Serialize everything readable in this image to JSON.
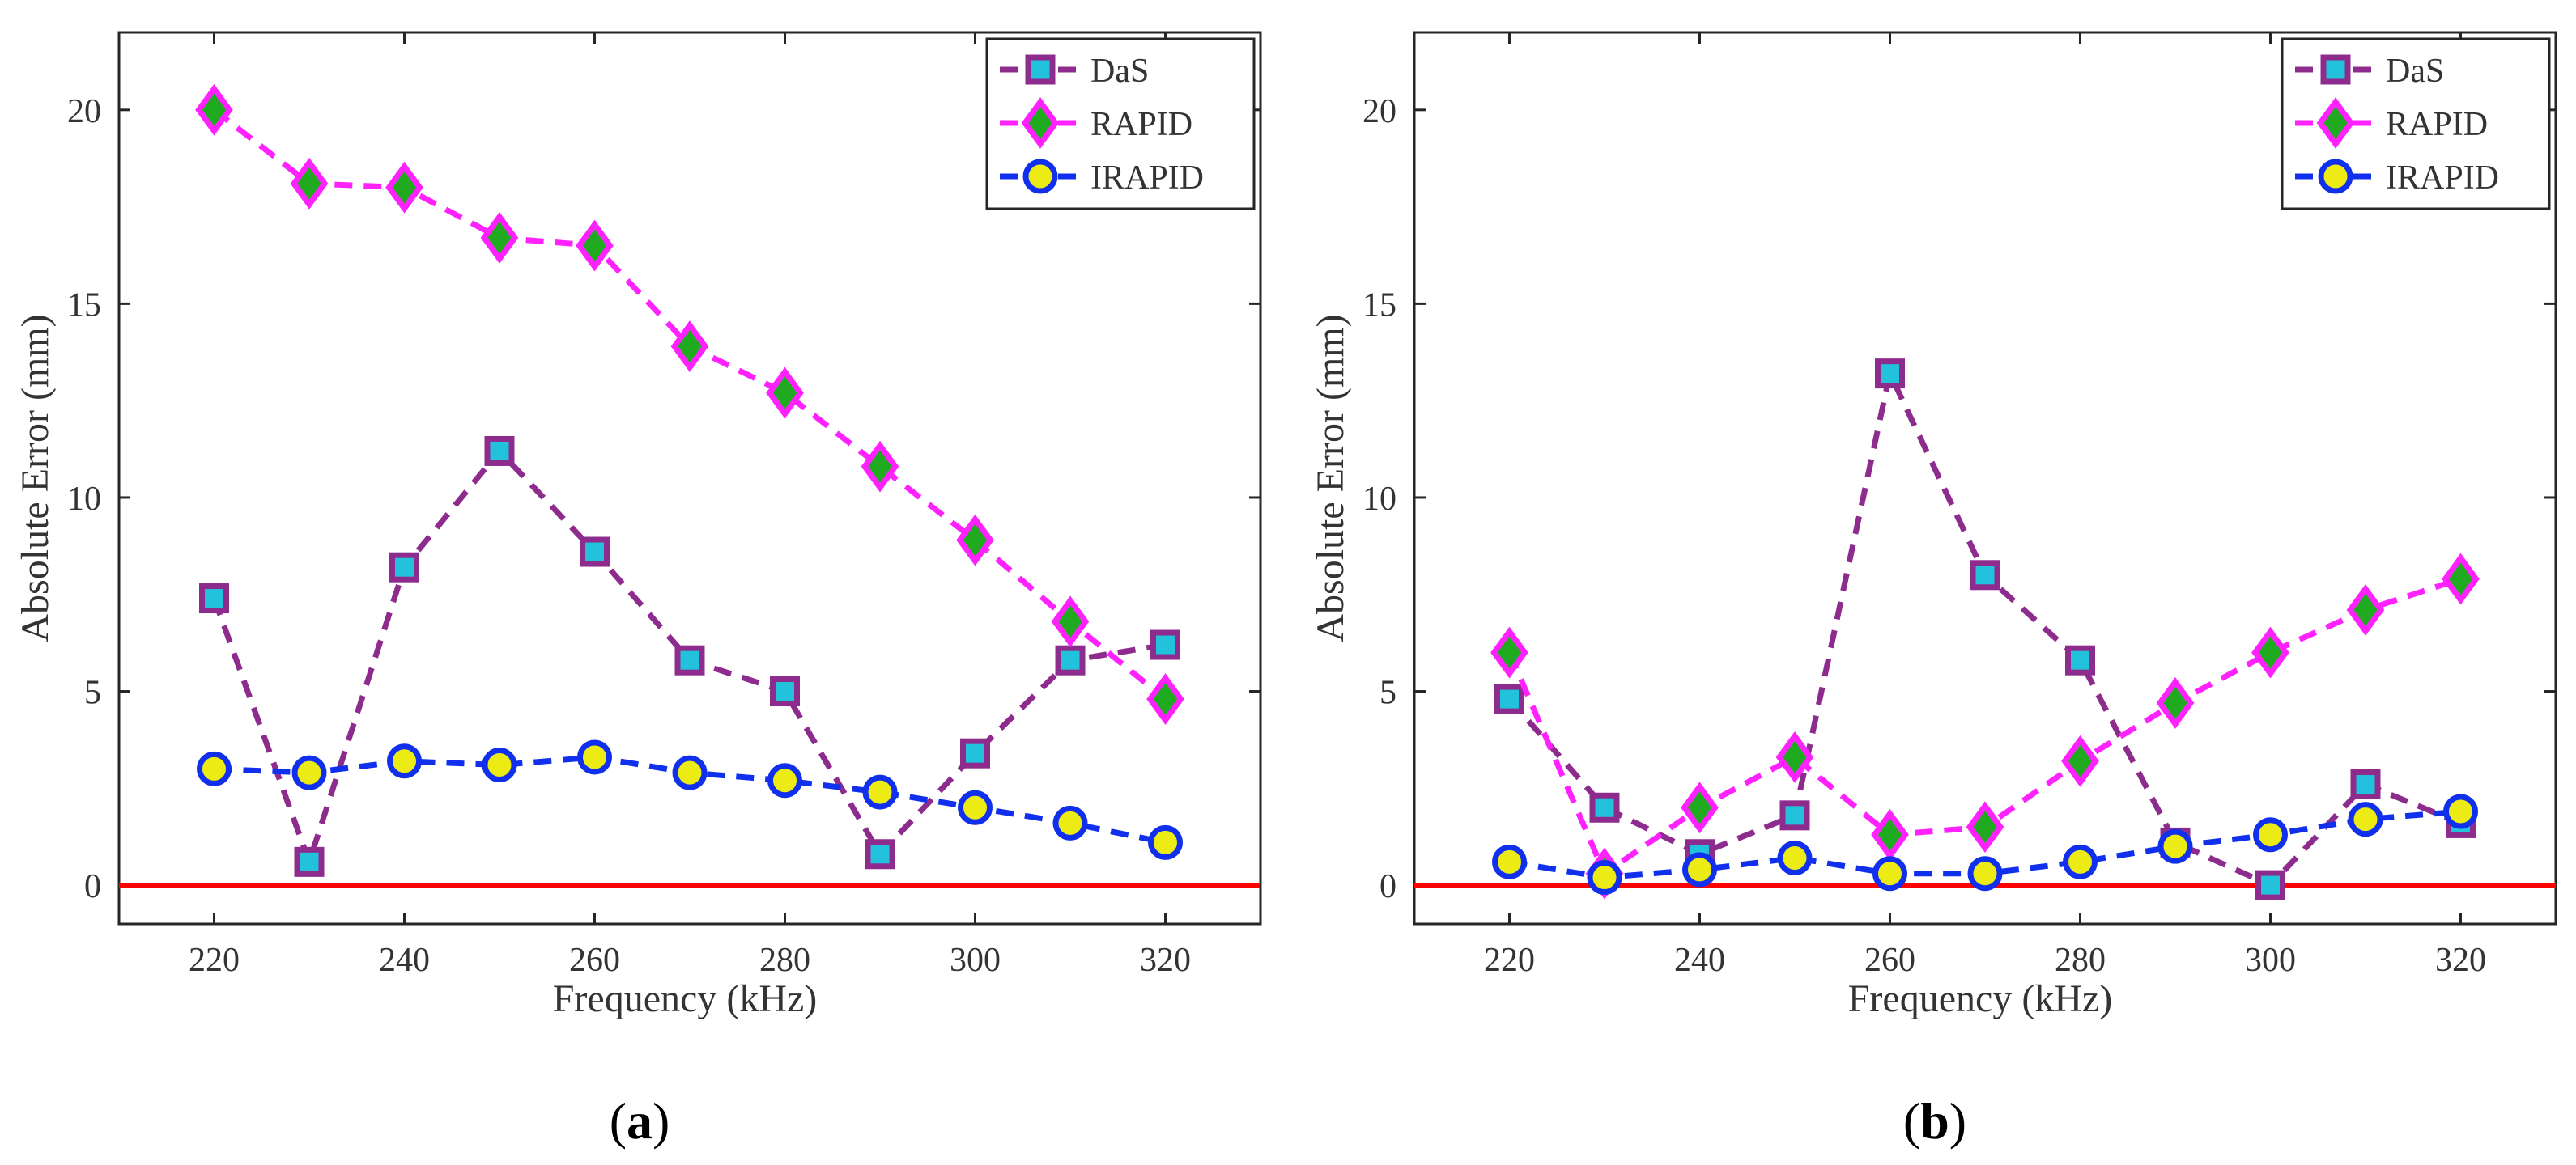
{
  "figure": {
    "panels": [
      {
        "label_open": "(",
        "label_letter": "a",
        "label_close": ")"
      },
      {
        "label_open": "(",
        "label_letter": "b",
        "label_close": ")"
      }
    ]
  },
  "series_styles": [
    {
      "name": "DaS",
      "line_color": "#8e2c8e",
      "marker": "square",
      "marker_fill": "#22c1dc",
      "marker_edge": "#8e2c8e"
    },
    {
      "name": "RAPID",
      "line_color": "#ff22ff",
      "marker": "diamond",
      "marker_fill": "#1faa1f",
      "marker_edge": "#ff22ff"
    },
    {
      "name": "IRAPID",
      "line_color": "#1030ee",
      "marker": "circle",
      "marker_fill": "#ecec14",
      "marker_edge": "#1030ee"
    }
  ],
  "reference_line": {
    "y": 0,
    "color": "#ff0000"
  },
  "chart_data": [
    {
      "type": "line",
      "title": "",
      "xlabel": "Frequency (kHz)",
      "ylabel": "Absolute Error (mm)",
      "x": [
        220,
        230,
        240,
        250,
        260,
        270,
        280,
        290,
        300,
        310,
        320
      ],
      "xlim": [
        210,
        330
      ],
      "ylim": [
        -1,
        22
      ],
      "xticks": [
        220,
        240,
        260,
        280,
        300,
        320
      ],
      "yticks": [
        0,
        5,
        10,
        15,
        20
      ],
      "grid": false,
      "legend_position": "top-right",
      "series": [
        {
          "name": "DaS",
          "values": [
            7.4,
            0.6,
            8.2,
            11.2,
            8.6,
            5.8,
            5.0,
            0.8,
            3.4,
            5.8,
            6.2
          ]
        },
        {
          "name": "RAPID",
          "values": [
            20.0,
            18.1,
            18.0,
            16.7,
            16.5,
            13.9,
            12.7,
            10.8,
            8.9,
            6.8,
            4.8
          ]
        },
        {
          "name": "IRAPID",
          "values": [
            3.0,
            2.9,
            3.2,
            3.1,
            3.3,
            2.9,
            2.7,
            2.4,
            2.0,
            1.6,
            1.1
          ]
        }
      ]
    },
    {
      "type": "line",
      "title": "",
      "xlabel": "Frequency (kHz)",
      "ylabel": "Absolute Error (mm)",
      "x": [
        220,
        230,
        240,
        250,
        260,
        270,
        280,
        290,
        300,
        310,
        320
      ],
      "xlim": [
        210,
        330
      ],
      "ylim": [
        -1,
        22
      ],
      "xticks": [
        220,
        240,
        260,
        280,
        300,
        320
      ],
      "yticks": [
        0,
        5,
        10,
        15,
        20
      ],
      "grid": false,
      "legend_position": "top-right",
      "series": [
        {
          "name": "DaS",
          "values": [
            4.8,
            2.0,
            0.8,
            1.8,
            13.2,
            8.0,
            5.8,
            1.1,
            0.0,
            2.6,
            1.6
          ]
        },
        {
          "name": "RAPID",
          "values": [
            6.0,
            0.3,
            2.0,
            3.3,
            1.3,
            1.5,
            3.2,
            4.7,
            6.0,
            7.1,
            7.9
          ]
        },
        {
          "name": "IRAPID",
          "values": [
            0.6,
            0.2,
            0.4,
            0.7,
            0.3,
            0.3,
            0.6,
            1.0,
            1.3,
            1.7,
            1.9
          ]
        }
      ]
    }
  ]
}
